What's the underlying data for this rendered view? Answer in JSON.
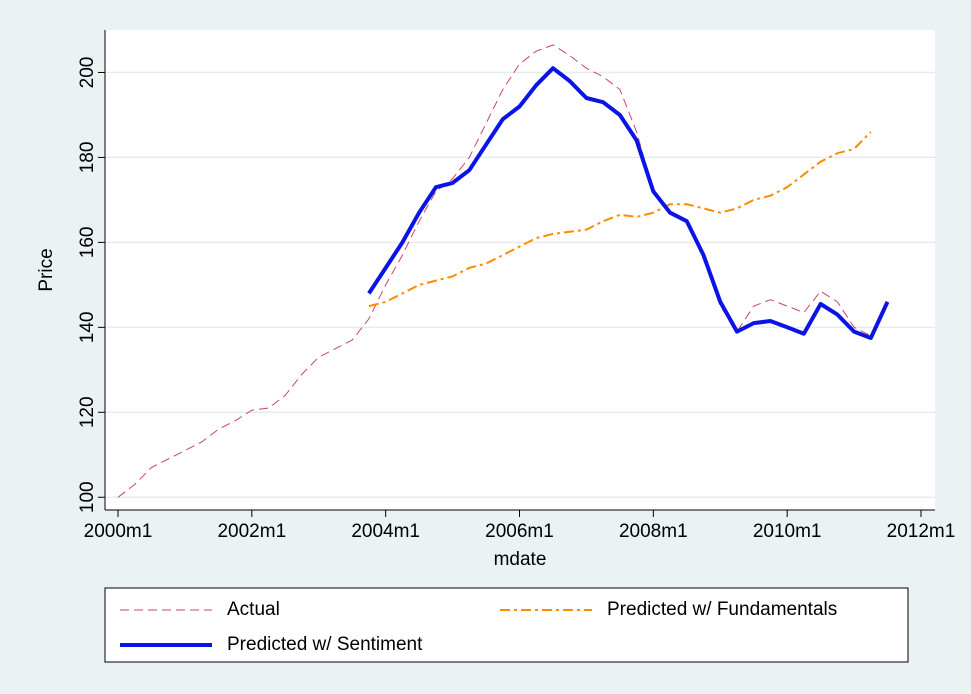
{
  "chart_data": {
    "type": "line",
    "ylabel": "Price",
    "xlabel": "mdate",
    "x": [
      "2000m1",
      "2000m4",
      "2000m7",
      "2000m10",
      "2001m1",
      "2001m4",
      "2001m7",
      "2001m10",
      "2002m1",
      "2002m4",
      "2002m7",
      "2002m10",
      "2003m1",
      "2003m4",
      "2003m7",
      "2003m10",
      "2004m1",
      "2004m4",
      "2004m7",
      "2004m10",
      "2005m1",
      "2005m4",
      "2005m7",
      "2005m10",
      "2006m1",
      "2006m4",
      "2006m7",
      "2006m10",
      "2007m1",
      "2007m4",
      "2007m7",
      "2007m10",
      "2008m1",
      "2008m4",
      "2008m7",
      "2008m10",
      "2009m1",
      "2009m4",
      "2009m7",
      "2009m10",
      "2010m1",
      "2010m4",
      "2010m7",
      "2010m10",
      "2011m1",
      "2011m4",
      "2011m7"
    ],
    "series": [
      {
        "name": "Actual",
        "color": "#c8466a",
        "dash": "dashed",
        "width": 1,
        "values": [
          100,
          103,
          107,
          109,
          111,
          113,
          116,
          118,
          120.5,
          121,
          124,
          129,
          133,
          135,
          137,
          142,
          150,
          157,
          165,
          172,
          175,
          180,
          188,
          196,
          202,
          205,
          206.5,
          204,
          201,
          199,
          196,
          186,
          172,
          167,
          165,
          156,
          145,
          139,
          145,
          146.5,
          145,
          143.5,
          148.5,
          146,
          140,
          138,
          null
        ]
      },
      {
        "name": "Predicted w/ Fundamentals",
        "color": "#ff8c00",
        "dash": "dashdot",
        "width": 2,
        "values": [
          null,
          null,
          null,
          null,
          null,
          null,
          null,
          null,
          null,
          null,
          null,
          null,
          null,
          null,
          null,
          145,
          146,
          148,
          150,
          151,
          152,
          154,
          155,
          157,
          159,
          161,
          162,
          162.5,
          163,
          165,
          166.5,
          166,
          167,
          169,
          169,
          168,
          167,
          168,
          170,
          171,
          173,
          176,
          179,
          181,
          182,
          186,
          null
        ]
      },
      {
        "name": "Predicted w/ Sentiment",
        "color": "#0a14e6",
        "dash": "solid",
        "width": 4,
        "values": [
          null,
          null,
          null,
          null,
          null,
          null,
          null,
          null,
          null,
          null,
          null,
          null,
          null,
          null,
          null,
          148,
          154,
          160,
          167,
          173,
          174,
          177,
          183,
          189,
          192,
          197,
          201,
          198,
          194,
          193,
          190,
          184,
          172,
          167,
          165,
          157,
          146,
          139,
          141,
          141.5,
          140,
          138.5,
          145.5,
          143,
          139,
          137.5,
          146
        ]
      }
    ],
    "xlim": [
      "2000m1",
      "2012m1"
    ],
    "xticks": [
      "2000m1",
      "2002m1",
      "2004m1",
      "2006m1",
      "2008m1",
      "2010m1",
      "2012m1"
    ],
    "ylim": [
      97,
      210
    ],
    "yticks": [
      100,
      120,
      140,
      160,
      180,
      200
    ],
    "grid": true
  }
}
